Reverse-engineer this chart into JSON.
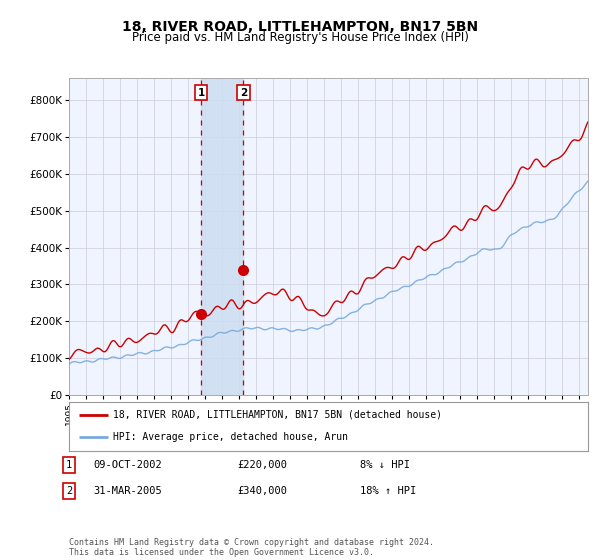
{
  "title": "18, RIVER ROAD, LITTLEHAMPTON, BN17 5BN",
  "subtitle": "Price paid vs. HM Land Registry's House Price Index (HPI)",
  "title_fontsize": 10,
  "subtitle_fontsize": 8.5,
  "ylabel_ticks": [
    "£0",
    "£100K",
    "£200K",
    "£300K",
    "£400K",
    "£500K",
    "£600K",
    "£700K",
    "£800K"
  ],
  "ytick_values": [
    0,
    100000,
    200000,
    300000,
    400000,
    500000,
    600000,
    700000,
    800000
  ],
  "ylim": [
    0,
    860000
  ],
  "xlim_start": 1995.0,
  "xlim_end": 2025.5,
  "bg_color": "#f0f4ff",
  "grid_color": "#ccccdd",
  "red_line_color": "#cc0000",
  "blue_line_color": "#7aaadd",
  "sale1_x": 2002.77,
  "sale1_y": 220000,
  "sale2_x": 2005.25,
  "sale2_y": 340000,
  "vline1_x": 2002.77,
  "vline2_x": 2005.25,
  "shade_color": "#ccddf0",
  "legend_line1": "18, RIVER ROAD, LITTLEHAMPTON, BN17 5BN (detached house)",
  "legend_line2": "HPI: Average price, detached house, Arun",
  "table_rows": [
    {
      "num": "1",
      "date": "09-OCT-2002",
      "price": "£220,000",
      "hpi": "8% ↓ HPI"
    },
    {
      "num": "2",
      "date": "31-MAR-2005",
      "price": "£340,000",
      "hpi": "18% ↑ HPI"
    }
  ],
  "footer": "Contains HM Land Registry data © Crown copyright and database right 2024.\nThis data is licensed under the Open Government Licence v3.0."
}
